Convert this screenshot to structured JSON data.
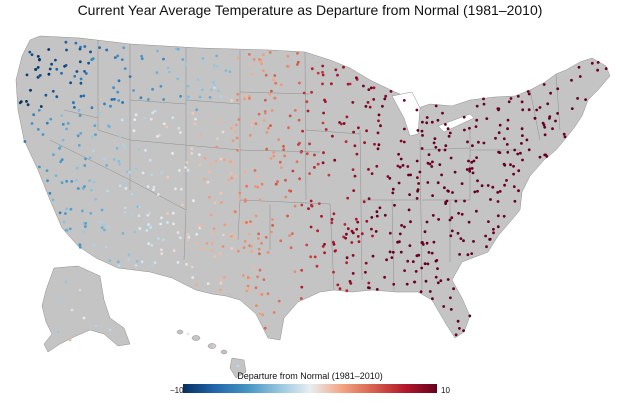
{
  "title": "Current Year Average Temperature as Departure from Normal (1981–2010)",
  "legend": {
    "title": "Departure from Normal (1981–2010)",
    "min_label": "−10",
    "max_label": "10",
    "min": -10,
    "max": 10,
    "colors": [
      "#053061",
      "#2166ac",
      "#4393c3",
      "#92c5de",
      "#e8eef2",
      "#f4a582",
      "#d6604d",
      "#b2182b",
      "#67001f"
    ]
  },
  "map": {
    "land_color": "#c4c4c4",
    "border_color": "#8f8f8f",
    "regions": [
      "contiguous-us",
      "alaska",
      "hawaii"
    ]
  }
}
